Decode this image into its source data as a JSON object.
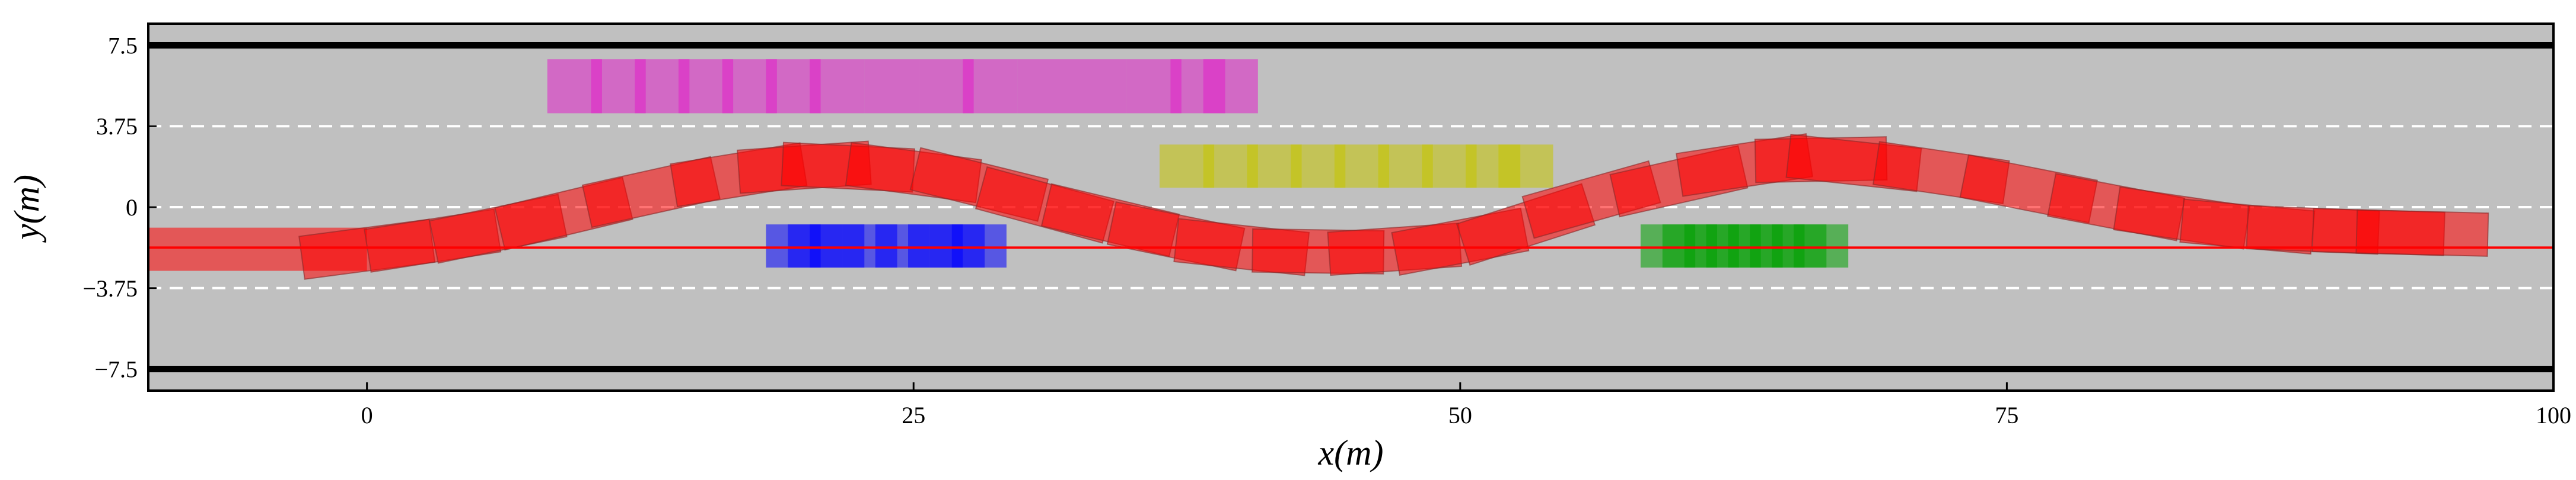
{
  "chart_data": {
    "type": "scatter",
    "title": "",
    "xlabel": "x(m)",
    "ylabel": "y(m)",
    "xlim": [
      -10,
      100
    ],
    "ylim": [
      -8.5,
      8.5
    ],
    "x_ticks": [
      {
        "value": 0,
        "label": "0"
      },
      {
        "value": 25,
        "label": "25"
      },
      {
        "value": 50,
        "label": "50"
      },
      {
        "value": 75,
        "label": "75"
      },
      {
        "value": 100,
        "label": "100"
      }
    ],
    "y_ticks": [
      {
        "value": 7.5,
        "label": "7.5"
      },
      {
        "value": 3.75,
        "label": "3.75"
      },
      {
        "value": 0,
        "label": "0"
      },
      {
        "value": -3.75,
        "label": "−3.75"
      },
      {
        "value": -7.5,
        "label": "−7.5"
      }
    ],
    "road": {
      "surface_color": "#c0c0c0",
      "road_edges_y": [
        7.5,
        -7.5
      ],
      "road_edge_color": "#000000",
      "lane_dividers_y": [
        3.75,
        0,
        -3.75
      ],
      "lane_divider_color": "#ffffff",
      "reference_line_y": -1.875,
      "reference_line_color": "#ff0000"
    },
    "obstacles": [
      {
        "color": "#e020c8",
        "width_m": 2.5,
        "length_m": 2.5,
        "y": 5.6,
        "x_positions": [
          9.5,
          11.5,
          13.5,
          15.5,
          17.5,
          19.5,
          21.5,
          24,
          26.5,
          28.5,
          31,
          33.5,
          36,
          38,
          39.5
        ]
      },
      {
        "color": "#c4c400",
        "width_m": 2.0,
        "length_m": 2.5,
        "y": 1.9,
        "x_positions": [
          37.5,
          39.5,
          41.5,
          43.5,
          45.5,
          47.5,
          49.5,
          51.5,
          53
        ]
      },
      {
        "color": "#0000ff",
        "width_m": 2.0,
        "length_m": 2.5,
        "y": -1.8,
        "x_positions": [
          19.5,
          20.5,
          21.5,
          23,
          24.5,
          26,
          27,
          28
        ]
      },
      {
        "color": "#00a000",
        "width_m": 2.0,
        "length_m": 2.5,
        "y": -1.8,
        "x_positions": [
          59.5,
          60.5,
          61.5,
          62.5,
          63.5,
          64.5,
          65.5,
          66.5
        ]
      }
    ],
    "ego_vehicle": {
      "color": "#ff0000",
      "width_m": 2.0,
      "length_m": 6.0,
      "start_x": -10,
      "trajectory": [
        {
          "x": 0,
          "y": -1.95
        },
        {
          "x": 3,
          "y": -1.55
        },
        {
          "x": 6,
          "y": -1.0
        },
        {
          "x": 9,
          "y": -0.3
        },
        {
          "x": 13,
          "y": 0.7
        },
        {
          "x": 17,
          "y": 1.5
        },
        {
          "x": 20,
          "y": 1.85
        },
        {
          "x": 22,
          "y": 1.85
        },
        {
          "x": 25,
          "y": 1.6
        },
        {
          "x": 28,
          "y": 1.05
        },
        {
          "x": 31,
          "y": 0.1
        },
        {
          "x": 34,
          "y": -0.6
        },
        {
          "x": 37,
          "y": -1.35
        },
        {
          "x": 40,
          "y": -1.85
        },
        {
          "x": 43.5,
          "y": -2.05
        },
        {
          "x": 47,
          "y": -1.95
        },
        {
          "x": 50,
          "y": -1.6
        },
        {
          "x": 53,
          "y": -0.8
        },
        {
          "x": 56,
          "y": 0.35
        },
        {
          "x": 60,
          "y": 1.2
        },
        {
          "x": 63,
          "y": 1.95
        },
        {
          "x": 66.5,
          "y": 2.2
        },
        {
          "x": 68,
          "y": 2.05
        },
        {
          "x": 72,
          "y": 1.6
        },
        {
          "x": 76,
          "y": 0.85
        },
        {
          "x": 80,
          "y": 0.0
        },
        {
          "x": 83,
          "y": -0.5
        },
        {
          "x": 86,
          "y": -0.9
        },
        {
          "x": 89,
          "y": -1.05
        },
        {
          "x": 92,
          "y": -1.15
        },
        {
          "x": 94,
          "y": -1.2
        }
      ]
    },
    "grid": false,
    "legend": "none"
  }
}
